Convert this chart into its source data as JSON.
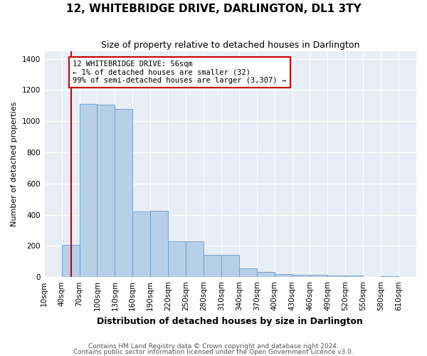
{
  "title": "12, WHITEBRIDGE DRIVE, DARLINGTON, DL1 3TY",
  "subtitle": "Size of property relative to detached houses in Darlington",
  "xlabel": "Distribution of detached houses by size in Darlington",
  "ylabel": "Number of detached properties",
  "bar_color": "#b8cfe8",
  "bar_edge_color": "#6699cc",
  "background_color": "#e8eef5",
  "grid_color": "#ffffff",
  "vline_color": "#cc0000",
  "vline_x": 56,
  "annotation_text": "12 WHITEBRIDGE DRIVE: 56sqm\n← 1% of detached houses are smaller (32)\n99% of semi-detached houses are larger (3,307) →",
  "footer1": "Contains HM Land Registry data © Crown copyright and database right 2024.",
  "footer2": "Contains public sector information licensed under the Open Government Licence v3.0.",
  "categories": [
    "10sqm",
    "40sqm",
    "70sqm",
    "100sqm",
    "130sqm",
    "160sqm",
    "190sqm",
    "220sqm",
    "250sqm",
    "280sqm",
    "310sqm",
    "340sqm",
    "370sqm",
    "400sqm",
    "430sqm",
    "460sqm",
    "490sqm",
    "520sqm",
    "550sqm",
    "580sqm",
    "610sqm"
  ],
  "bin_edges": [
    10,
    40,
    70,
    100,
    130,
    160,
    190,
    220,
    250,
    280,
    310,
    340,
    370,
    400,
    430,
    460,
    490,
    520,
    550,
    580,
    610,
    640
  ],
  "bin_width": 30,
  "values": [
    0,
    205,
    1110,
    1105,
    1080,
    420,
    425,
    230,
    230,
    145,
    145,
    55,
    35,
    20,
    15,
    15,
    10,
    10,
    0,
    5,
    0
  ],
  "ylim": [
    0,
    1450
  ],
  "yticks": [
    0,
    200,
    400,
    600,
    800,
    1000,
    1200,
    1400
  ],
  "figsize": [
    6.0,
    5.0
  ],
  "dpi": 100,
  "title_fontsize": 11,
  "subtitle_fontsize": 9,
  "xlabel_fontsize": 9,
  "ylabel_fontsize": 8,
  "tick_fontsize": 7.5,
  "footer_fontsize": 6.5,
  "annotation_fontsize": 7.5
}
